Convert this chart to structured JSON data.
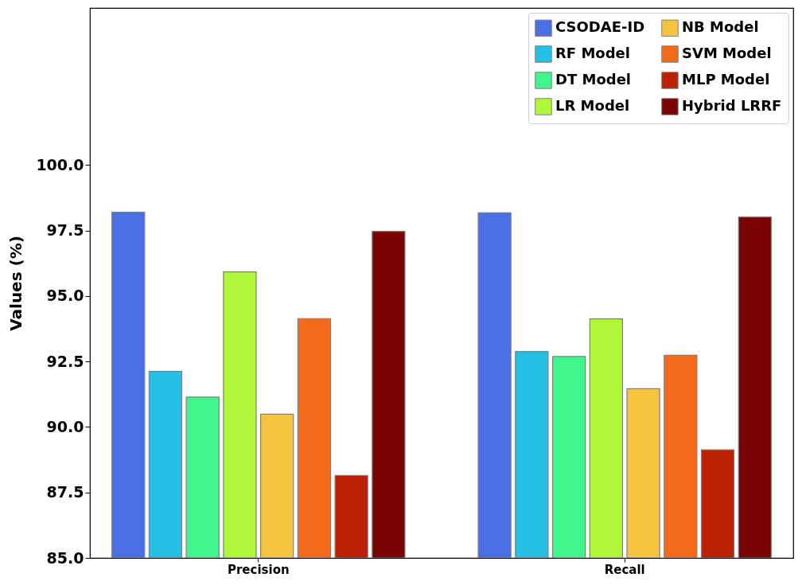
{
  "chart_data": {
    "type": "bar",
    "ylabel": "Values (%)",
    "categories": [
      "Precision",
      "Recall"
    ],
    "series": [
      {
        "name": "CSODAE-ID",
        "color": "#4a6fe3",
        "values": [
          98.2,
          98.18
        ]
      },
      {
        "name": "RF Model",
        "color": "#26c0e6",
        "values": [
          92.12,
          92.88
        ]
      },
      {
        "name": "DT Model",
        "color": "#40f58c",
        "values": [
          91.14,
          92.69
        ]
      },
      {
        "name": "LR Model",
        "color": "#b0f73a",
        "values": [
          95.92,
          94.13
        ]
      },
      {
        "name": "NB Model",
        "color": "#f5c33f",
        "values": [
          90.49,
          91.46
        ]
      },
      {
        "name": "SVM Model",
        "color": "#f36a1a",
        "values": [
          94.14,
          92.74
        ]
      },
      {
        "name": "MLP Model",
        "color": "#bb2203",
        "values": [
          88.15,
          89.13
        ]
      },
      {
        "name": "Hybrid LRRF",
        "color": "#7a0403",
        "values": [
          97.47,
          98.02
        ]
      }
    ],
    "ylim": [
      85,
      106
    ],
    "yticks": [
      {
        "value": 85,
        "label": "85.0"
      },
      {
        "value": 87.5,
        "label": "87.5"
      },
      {
        "value": 90,
        "label": "90.0"
      },
      {
        "value": 92.5,
        "label": "92.5"
      },
      {
        "value": 95,
        "label": "95.0"
      },
      {
        "value": 97.5,
        "label": "97.5"
      },
      {
        "value": 100,
        "label": "100.0"
      }
    ],
    "legend": "top right",
    "grid": false
  }
}
